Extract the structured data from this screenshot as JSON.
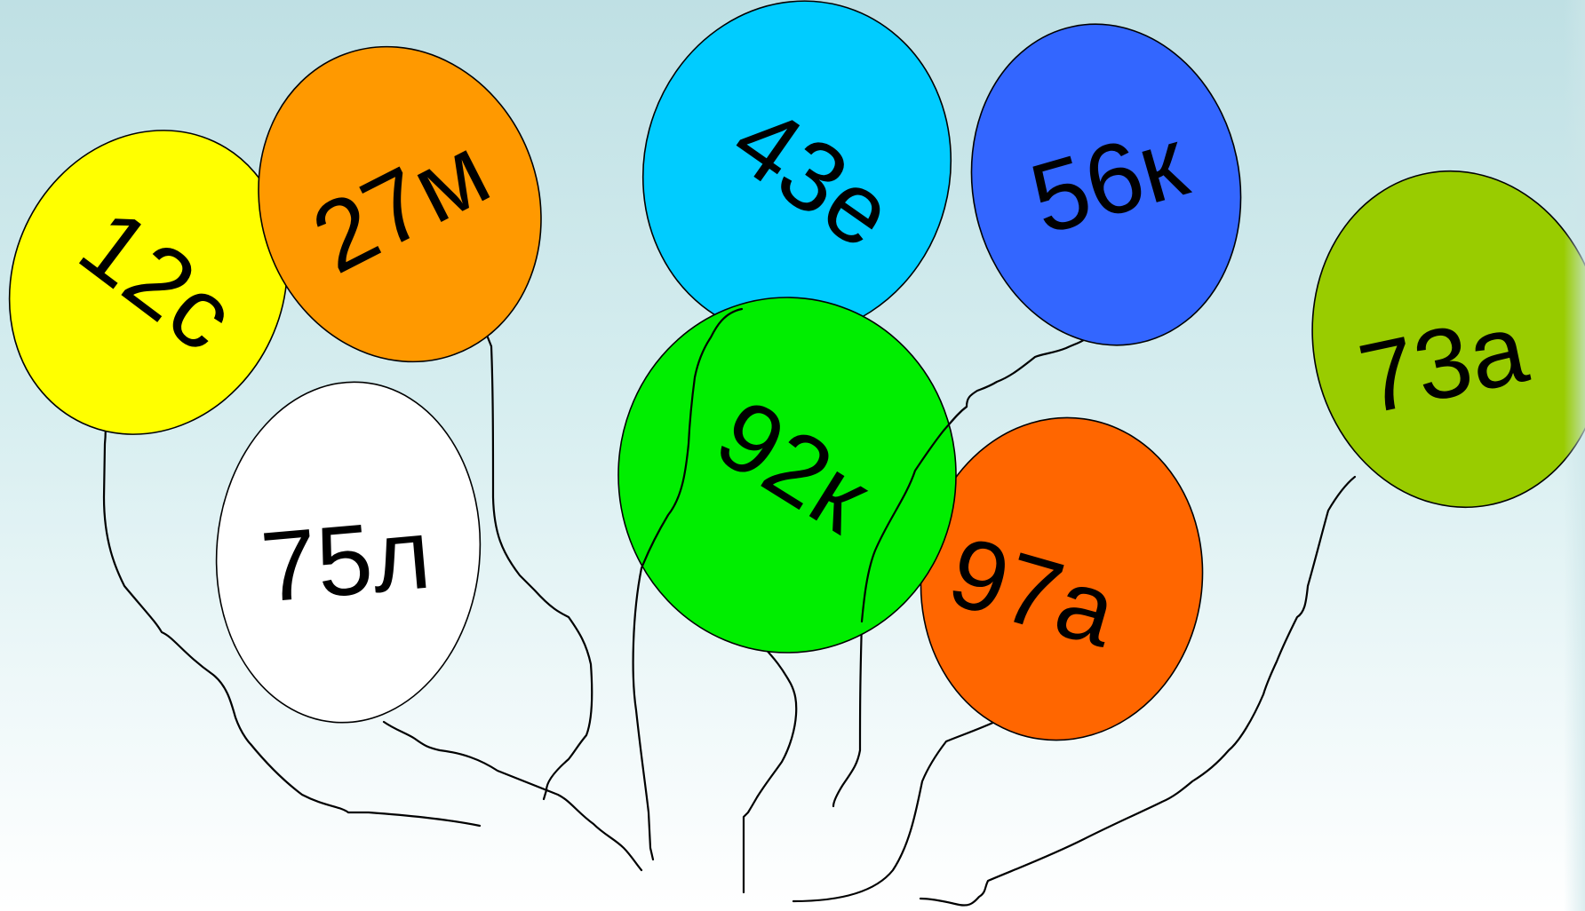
{
  "balloons": [
    {
      "id": "12c",
      "label": "12с",
      "color": "#ffff00"
    },
    {
      "id": "27m",
      "label": "27м",
      "color": "#ff9900"
    },
    {
      "id": "75l",
      "label": "75л",
      "color": "#ffffff"
    },
    {
      "id": "43e",
      "label": "43е",
      "color": "#00ccff"
    },
    {
      "id": "56k",
      "label": "56к",
      "color": "#3366ff"
    },
    {
      "id": "92k",
      "label": "92к",
      "color": "#00ee00"
    },
    {
      "id": "97a",
      "label": "97а",
      "color": "#ff6600"
    },
    {
      "id": "73a",
      "label": "73а",
      "color": "#99cc00"
    }
  ]
}
